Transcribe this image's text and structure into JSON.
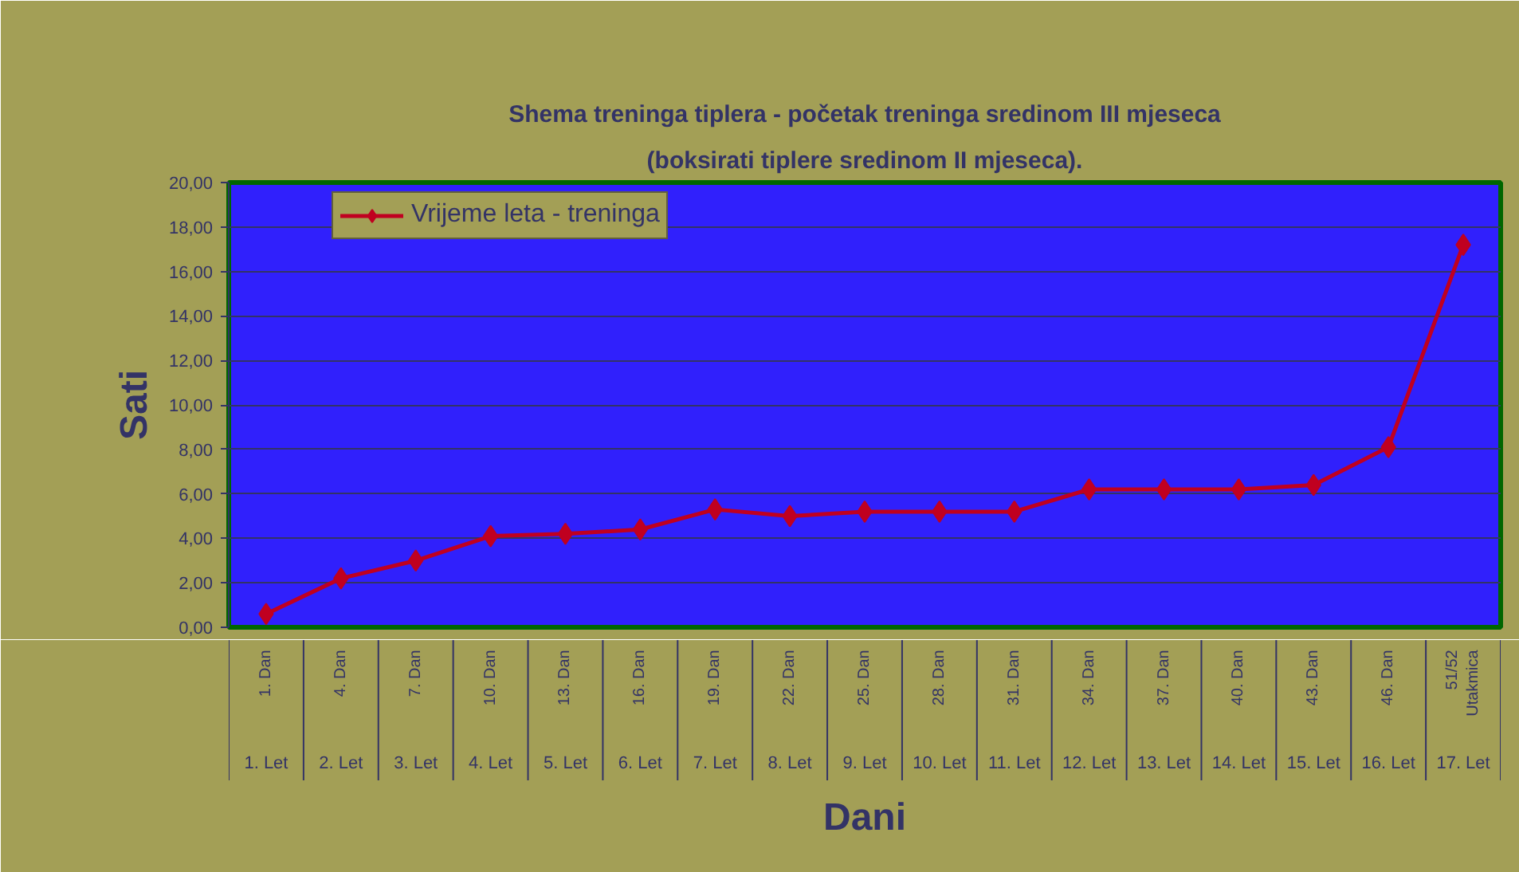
{
  "chart_data": {
    "type": "line",
    "title": "Shema treninga tiplera - početak treninga sredinom III mjeseca",
    "subtitle": "(boksirati tiplere sredinom II mjeseca).",
    "xlabel": "Dani",
    "ylabel": "Sati",
    "categories": [
      "1. Dan",
      "4. Dan",
      "7. Dan",
      "10. Dan",
      "13. Dan",
      "16. Dan",
      "19. Dan",
      "22. Dan",
      "25. Dan",
      "28. Dan",
      "31. Dan",
      "34. Dan",
      "37. Dan",
      "40. Dan",
      "43. Dan",
      "46. Dan",
      "51/52\nUtakmica"
    ],
    "annotations": [
      "1. Let",
      "2. Let",
      "3. Let",
      "4. Let",
      "5. Let",
      "6. Let",
      "7. Let",
      "8. Let",
      "9. Let",
      "10. Let",
      "11. Let",
      "12. Let",
      "13. Let",
      "14. Let",
      "15. Let",
      "16. Let",
      "17. Let"
    ],
    "series": [
      {
        "name": "Vrijeme leta - treninga",
        "color": "#c00020",
        "values": [
          0.6,
          2.2,
          3.0,
          4.1,
          4.2,
          4.4,
          5.3,
          5.0,
          5.2,
          5.2,
          5.2,
          6.2,
          6.2,
          6.2,
          6.4,
          8.1,
          17.2
        ]
      }
    ],
    "ylim": [
      0,
      20
    ],
    "yticks": [
      {
        "value": 0,
        "label": "0,00"
      },
      {
        "value": 2,
        "label": "2,00"
      },
      {
        "value": 4,
        "label": "4,00"
      },
      {
        "value": 6,
        "label": "6,00"
      },
      {
        "value": 8,
        "label": "8,00"
      },
      {
        "value": 10,
        "label": "10,00"
      },
      {
        "value": 12,
        "label": "12,00"
      },
      {
        "value": 14,
        "label": "14,00"
      },
      {
        "value": 16,
        "label": "16,00"
      },
      {
        "value": 18,
        "label": "18,00"
      },
      {
        "value": 20,
        "label": "20,00"
      }
    ],
    "grid": "y",
    "legend": "top left",
    "marker": "diamond",
    "line_style": "solid"
  }
}
